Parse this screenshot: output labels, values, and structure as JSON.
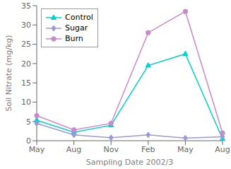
{
  "chart_data": {
    "type": "line",
    "xlabel": "Sampling Date 2002/3",
    "ylabel": "Soil Nitrate (mg/kg)",
    "categories": [
      "May",
      "Aug",
      "Nov",
      "Feb",
      "May",
      "Aug"
    ],
    "ylim": [
      0,
      35
    ],
    "yticks": [
      0,
      5,
      10,
      15,
      20,
      25,
      30,
      35
    ],
    "grid": false,
    "legend": "upper left",
    "series": [
      {
        "name": "Control",
        "color": "#00d0d0",
        "marker": "triangle",
        "values": [
          5.3,
          2.2,
          4.0,
          19.5,
          22.5,
          0.5
        ]
      },
      {
        "name": "Sugar",
        "color": "#9999dd",
        "marker": "diamond",
        "values": [
          4.5,
          1.5,
          0.8,
          1.5,
          0.7,
          1.0
        ]
      },
      {
        "name": "Burn",
        "color": "#cc88cc",
        "marker": "circle",
        "values": [
          6.5,
          2.8,
          4.5,
          28.0,
          33.5,
          2.0
        ]
      }
    ]
  }
}
